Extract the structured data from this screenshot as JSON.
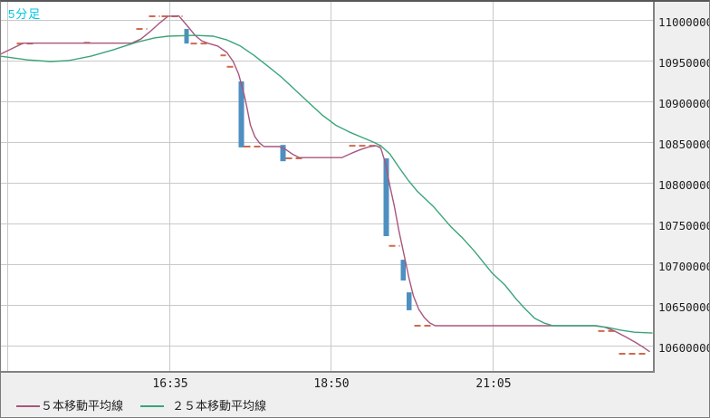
{
  "window": {
    "kind": "stock-chart-window"
  },
  "colors": {
    "title": "#00c6e4",
    "ma5": "#a8557d",
    "ma25": "#3aa478",
    "doji": "#cf6a4d",
    "candle_body": "#4e8fc0",
    "grid": "#c9c9c9",
    "plot_bg": "#ffffff",
    "axis_bg": "#efefef",
    "axis_text": "#1c1c1c"
  },
  "legend": [
    {
      "series": "ma5",
      "label": "５本移動平均線"
    },
    {
      "series": "ma25",
      "label": "２５本移動平均線"
    }
  ],
  "chart_data": {
    "type": "candlestick",
    "title": "5分足",
    "grid": true,
    "legend_position": "bottom",
    "y_axis": {
      "side": "right",
      "ticks": [
        11000000,
        10950000,
        10900000,
        10850000,
        10800000,
        10750000,
        10700000,
        10650000,
        10600000
      ],
      "tick_step": 50000
    },
    "x_axis": {
      "ticks": [
        {
          "label": "16:35",
          "x": 187
        },
        {
          "label": "18:50",
          "x": 365
        },
        {
          "label": "21:05",
          "x": 544
        }
      ],
      "unlabeled_grid_x": [
        8
      ]
    },
    "doji_marks": [
      [
        18,
        37,
        10971500
      ],
      [
        92,
        101,
        10972500
      ],
      [
        150,
        162,
        10989500
      ],
      [
        164,
        176,
        11005000
      ],
      [
        178,
        201,
        11005000
      ],
      [
        210,
        230,
        10971500
      ],
      [
        243,
        249,
        10957000
      ],
      [
        250,
        258,
        10943000
      ],
      [
        269,
        287,
        10845000
      ],
      [
        315,
        333,
        10830500
      ],
      [
        385,
        420,
        10846000
      ],
      [
        429,
        441,
        10723000
      ],
      [
        457,
        478,
        10625000
      ],
      [
        660,
        680,
        10618500
      ],
      [
        683,
        713,
        10590500
      ]
    ],
    "bodies": [
      [
        203,
        208,
        10989500,
        10971500
      ],
      [
        263,
        269,
        10925000,
        10844000
      ],
      [
        309,
        315,
        10847000,
        10827000
      ],
      [
        423,
        429,
        10830500,
        10735000
      ],
      [
        442,
        447.5,
        10706000,
        10680500
      ],
      [
        448.5,
        454,
        10666000,
        10644000
      ]
    ],
    "series": [
      {
        "name": "ma5",
        "points": [
          [
            0,
            10958500
          ],
          [
            25,
            10972000
          ],
          [
            145,
            10972000
          ],
          [
            155,
            10977000
          ],
          [
            165,
            10986000
          ],
          [
            175,
            10996000
          ],
          [
            185,
            11005000
          ],
          [
            197,
            11005500
          ],
          [
            205,
            10995000
          ],
          [
            215,
            10981500
          ],
          [
            222,
            10975000
          ],
          [
            230,
            10971500
          ],
          [
            240,
            10968500
          ],
          [
            250,
            10960500
          ],
          [
            257,
            10949500
          ],
          [
            263,
            10934000
          ],
          [
            268,
            10914000
          ],
          [
            272,
            10894000
          ],
          [
            276,
            10871500
          ],
          [
            281,
            10857000
          ],
          [
            286,
            10849500
          ],
          [
            291,
            10845000
          ],
          [
            308,
            10845000
          ],
          [
            315,
            10841500
          ],
          [
            322,
            10836000
          ],
          [
            330,
            10831500
          ],
          [
            377,
            10831500
          ],
          [
            388,
            10837000
          ],
          [
            398,
            10841500
          ],
          [
            408,
            10845000
          ],
          [
            415,
            10846000
          ],
          [
            420,
            10843000
          ],
          [
            425,
            10825000
          ],
          [
            430,
            10797000
          ],
          [
            435,
            10771500
          ],
          [
            440,
            10741500
          ],
          [
            446,
            10710500
          ],
          [
            451,
            10684000
          ],
          [
            456,
            10661500
          ],
          [
            462,
            10645000
          ],
          [
            468,
            10635000
          ],
          [
            474,
            10628500
          ],
          [
            480,
            10625000
          ],
          [
            658,
            10625000
          ],
          [
            668,
            10623000
          ],
          [
            678,
            10618500
          ],
          [
            690,
            10611500
          ],
          [
            702,
            10604000
          ],
          [
            710,
            10598500
          ],
          [
            717,
            10593000
          ]
        ]
      },
      {
        "name": "ma25",
        "points": [
          [
            0,
            10956000
          ],
          [
            30,
            10951500
          ],
          [
            55,
            10949500
          ],
          [
            75,
            10950500
          ],
          [
            100,
            10956000
          ],
          [
            125,
            10964000
          ],
          [
            150,
            10973000
          ],
          [
            170,
            10978500
          ],
          [
            185,
            10980500
          ],
          [
            215,
            10981500
          ],
          [
            235,
            10980500
          ],
          [
            250,
            10976000
          ],
          [
            265,
            10968500
          ],
          [
            280,
            10957000
          ],
          [
            295,
            10944000
          ],
          [
            310,
            10930500
          ],
          [
            325,
            10915000
          ],
          [
            340,
            10899500
          ],
          [
            355,
            10884000
          ],
          [
            370,
            10871500
          ],
          [
            385,
            10863000
          ],
          [
            400,
            10856000
          ],
          [
            412,
            10850500
          ],
          [
            420,
            10846000
          ],
          [
            430,
            10836000
          ],
          [
            440,
            10819500
          ],
          [
            450,
            10804000
          ],
          [
            460,
            10790500
          ],
          [
            478,
            10771500
          ],
          [
            497,
            10747000
          ],
          [
            510,
            10733000
          ],
          [
            523,
            10717000
          ],
          [
            543,
            10689500
          ],
          [
            557,
            10675000
          ],
          [
            570,
            10657000
          ],
          [
            580,
            10645000
          ],
          [
            590,
            10634000
          ],
          [
            600,
            10628500
          ],
          [
            610,
            10625000
          ],
          [
            655,
            10625000
          ],
          [
            670,
            10623000
          ],
          [
            685,
            10619500
          ],
          [
            700,
            10617000
          ],
          [
            720,
            10616000
          ]
        ]
      }
    ]
  }
}
